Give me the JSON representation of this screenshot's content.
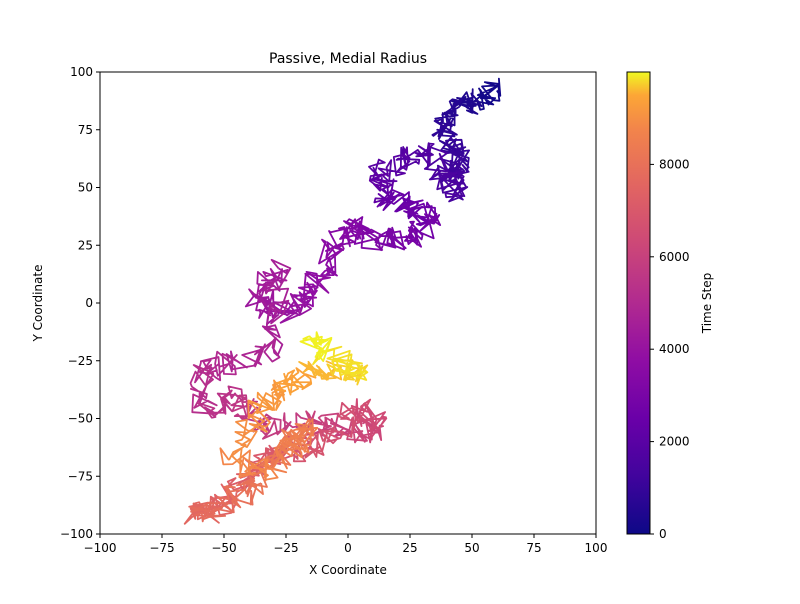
{
  "chart_data": {
    "type": "line",
    "title": "Passive, Medial Radius",
    "xlabel": "X Coordinate",
    "ylabel": "Y Coordinate",
    "xlim": [
      -100,
      100
    ],
    "ylim": [
      -100,
      100
    ],
    "xticks": [
      -100,
      -75,
      -50,
      -25,
      0,
      25,
      50,
      75,
      100
    ],
    "yticks": [
      -100,
      -75,
      -50,
      -25,
      0,
      25,
      50,
      75,
      100
    ],
    "xtick_labels": [
      "−100",
      "−75",
      "−50",
      "−25",
      "0",
      "25",
      "50",
      "75",
      "100"
    ],
    "ytick_labels": [
      "−100",
      "−75",
      "−50",
      "−25",
      "0",
      "25",
      "50",
      "75",
      "100"
    ],
    "grid": false,
    "legend": "none",
    "colormap": "plasma",
    "colorbar": {
      "label": "Time Step",
      "range": [
        0,
        10000
      ],
      "ticks": [
        0,
        2000,
        4000,
        6000,
        8000
      ],
      "tick_labels": [
        "0",
        "2000",
        "4000",
        "6000",
        "8000"
      ]
    },
    "series": [
      {
        "color_by": "time_step",
        "points": [
          {
            "t": 0,
            "x": 60,
            "y": 92
          },
          {
            "t": 300,
            "x": 52,
            "y": 88
          },
          {
            "t": 500,
            "x": 45,
            "y": 85
          },
          {
            "t": 700,
            "x": 38,
            "y": 78
          },
          {
            "t": 900,
            "x": 42,
            "y": 68
          },
          {
            "t": 1100,
            "x": 46,
            "y": 60
          },
          {
            "t": 1300,
            "x": 40,
            "y": 55
          },
          {
            "t": 1500,
            "x": 45,
            "y": 48
          },
          {
            "t": 1700,
            "x": 33,
            "y": 65
          },
          {
            "t": 1900,
            "x": 22,
            "y": 63
          },
          {
            "t": 2100,
            "x": 12,
            "y": 55
          },
          {
            "t": 2300,
            "x": 15,
            "y": 45
          },
          {
            "t": 2500,
            "x": 25,
            "y": 40
          },
          {
            "t": 2700,
            "x": 33,
            "y": 38
          },
          {
            "t": 2900,
            "x": 27,
            "y": 28
          },
          {
            "t": 3100,
            "x": 12,
            "y": 28
          },
          {
            "t": 3300,
            "x": 2,
            "y": 34
          },
          {
            "t": 3500,
            "x": -5,
            "y": 25
          },
          {
            "t": 3700,
            "x": -12,
            "y": 10
          },
          {
            "t": 3900,
            "x": -18,
            "y": 0
          },
          {
            "t": 4100,
            "x": -28,
            "y": -5
          },
          {
            "t": 4300,
            "x": -38,
            "y": 3
          },
          {
            "t": 4500,
            "x": -28,
            "y": 15
          },
          {
            "t": 4700,
            "x": -30,
            "y": -20
          },
          {
            "t": 4900,
            "x": -45,
            "y": -25
          },
          {
            "t": 5100,
            "x": -60,
            "y": -30
          },
          {
            "t": 5300,
            "x": -58,
            "y": -45
          },
          {
            "t": 5500,
            "x": -45,
            "y": -40
          },
          {
            "t": 5700,
            "x": -35,
            "y": -55
          },
          {
            "t": 5900,
            "x": -15,
            "y": -50
          },
          {
            "t": 6100,
            "x": 0,
            "y": -55
          },
          {
            "t": 6300,
            "x": 12,
            "y": -55
          },
          {
            "t": 6500,
            "x": 5,
            "y": -45
          },
          {
            "t": 6700,
            "x": -10,
            "y": -60
          },
          {
            "t": 6900,
            "x": -25,
            "y": -65
          },
          {
            "t": 7100,
            "x": -35,
            "y": -68
          },
          {
            "t": 7300,
            "x": -45,
            "y": -82
          },
          {
            "t": 7500,
            "x": -55,
            "y": -90
          },
          {
            "t": 7700,
            "x": -62,
            "y": -92
          },
          {
            "t": 7900,
            "x": -48,
            "y": -85
          },
          {
            "t": 8100,
            "x": -35,
            "y": -78
          },
          {
            "t": 8300,
            "x": -25,
            "y": -62
          },
          {
            "t": 8500,
            "x": -15,
            "y": -55
          },
          {
            "t": 8700,
            "x": -30,
            "y": -72
          },
          {
            "t": 8900,
            "x": -48,
            "y": -68
          },
          {
            "t": 9100,
            "x": -35,
            "y": -45
          },
          {
            "t": 9300,
            "x": -25,
            "y": -38
          },
          {
            "t": 9500,
            "x": -18,
            "y": -30
          },
          {
            "t": 9700,
            "x": -5,
            "y": -28
          },
          {
            "t": 9800,
            "x": 5,
            "y": -32
          },
          {
            "t": 9900,
            "x": -10,
            "y": -22
          },
          {
            "t": 9999,
            "x": -15,
            "y": -15
          }
        ]
      }
    ]
  }
}
